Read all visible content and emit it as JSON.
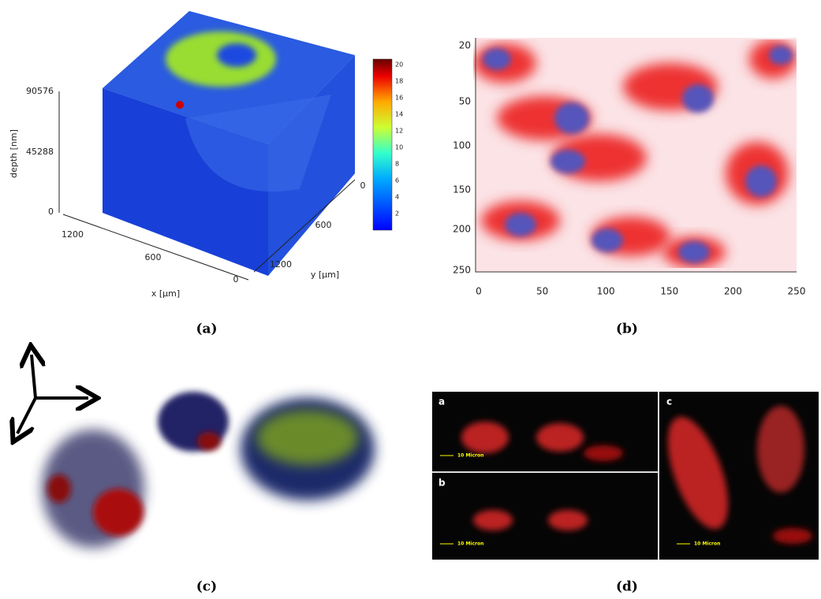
{
  "panels": [
    {
      "caption": "(a)",
      "depth_axis": {
        "label": "depth [nm]",
        "ticks": [
          90576,
          45288,
          0
        ]
      },
      "x_axis": {
        "label": "x [μm]",
        "ticks": [
          1200,
          600,
          0
        ]
      },
      "y_axis": {
        "label": "y [μm]",
        "ticks": [
          0,
          600,
          1200
        ]
      },
      "colorbar_ticks": [
        20,
        18,
        16,
        14,
        12,
        10,
        8,
        6,
        4,
        2
      ]
    },
    {
      "caption": "(b)",
      "y_ticks": [
        20,
        50,
        100,
        150,
        200,
        250
      ],
      "x_ticks": [
        0,
        50,
        100,
        150,
        200,
        250
      ]
    },
    {
      "caption": "(c)"
    },
    {
      "caption": "(d)",
      "subpanels": [
        {
          "label": "a",
          "scale": "10 Micron"
        },
        {
          "label": "b",
          "scale": "10 Micron"
        },
        {
          "label": "c",
          "scale": "10 Micron"
        }
      ]
    }
  ]
}
